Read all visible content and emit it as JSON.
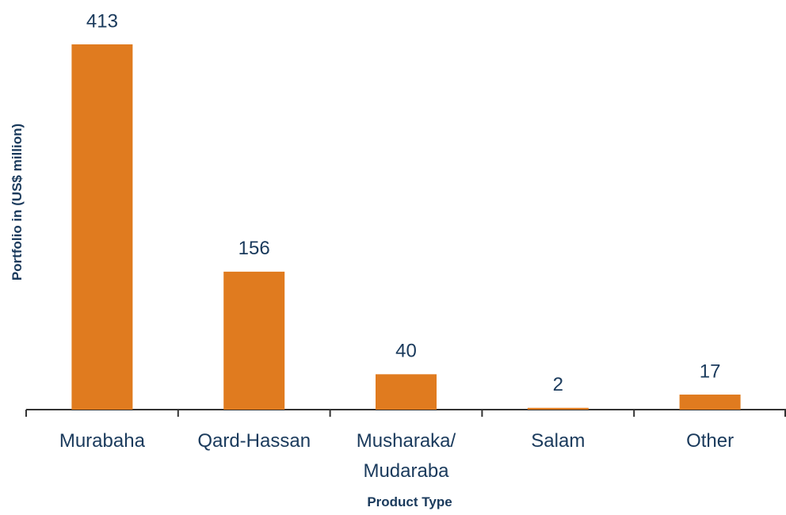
{
  "chart_data": {
    "type": "bar",
    "categories": [
      "Murabaha",
      "Qard-Hassan",
      "Musharaka/ Mudaraba",
      "Salam",
      "Other"
    ],
    "values": [
      413,
      156,
      40,
      2,
      17
    ],
    "color": "#e07b1f",
    "y_label": "Portfolio in (US$ million)",
    "x_label": "Product Type"
  }
}
